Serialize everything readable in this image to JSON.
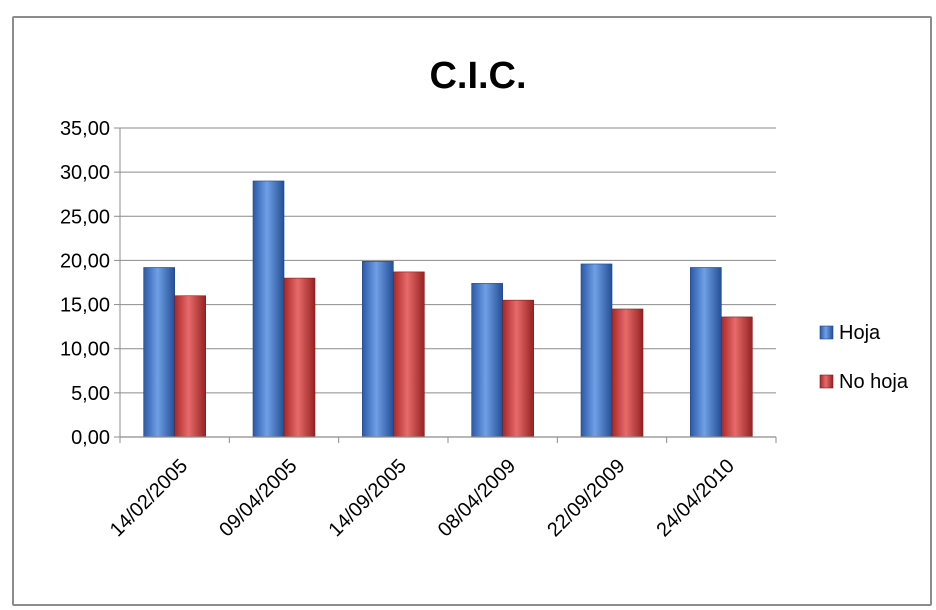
{
  "chart_data": {
    "type": "bar",
    "title": "C.I.C.",
    "xlabel": "",
    "ylabel": "",
    "categories": [
      "14/02/2005",
      "09/04/2005",
      "14/09/2005",
      "08/04/2009",
      "22/09/2009",
      "24/04/2010"
    ],
    "series": [
      {
        "name": "Hoja",
        "values": [
          19.2,
          29.0,
          19.9,
          17.4,
          19.6,
          19.2
        ],
        "color": "#3a6fc4"
      },
      {
        "name": "No hoja",
        "values": [
          16.0,
          18.0,
          18.7,
          15.5,
          14.5,
          13.6
        ],
        "color": "#c63a3a"
      }
    ],
    "ylim": [
      0,
      35
    ],
    "yticks": [
      "0,00",
      "5,00",
      "10,00",
      "15,00",
      "20,00",
      "25,00",
      "30,00",
      "35,00"
    ],
    "grid": true,
    "legend": "right"
  }
}
